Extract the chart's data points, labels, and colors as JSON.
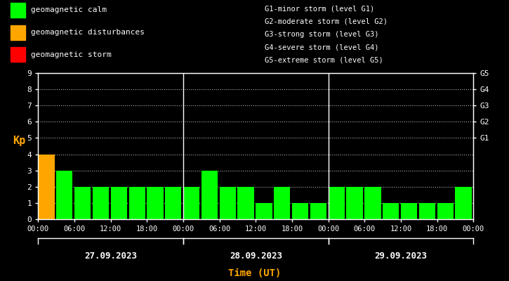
{
  "bg_color": "#000000",
  "bar_data": [
    {
      "day": 0,
      "hour": 0,
      "kp": 4,
      "color": "#FFA500"
    },
    {
      "day": 0,
      "hour": 3,
      "kp": 3,
      "color": "#00FF00"
    },
    {
      "day": 0,
      "hour": 6,
      "kp": 2,
      "color": "#00FF00"
    },
    {
      "day": 0,
      "hour": 9,
      "kp": 2,
      "color": "#00FF00"
    },
    {
      "day": 0,
      "hour": 12,
      "kp": 2,
      "color": "#00FF00"
    },
    {
      "day": 0,
      "hour": 15,
      "kp": 2,
      "color": "#00FF00"
    },
    {
      "day": 0,
      "hour": 18,
      "kp": 2,
      "color": "#00FF00"
    },
    {
      "day": 0,
      "hour": 21,
      "kp": 2,
      "color": "#00FF00"
    },
    {
      "day": 1,
      "hour": 0,
      "kp": 2,
      "color": "#00FF00"
    },
    {
      "day": 1,
      "hour": 3,
      "kp": 3,
      "color": "#00FF00"
    },
    {
      "day": 1,
      "hour": 6,
      "kp": 2,
      "color": "#00FF00"
    },
    {
      "day": 1,
      "hour": 9,
      "kp": 2,
      "color": "#00FF00"
    },
    {
      "day": 1,
      "hour": 12,
      "kp": 1,
      "color": "#00FF00"
    },
    {
      "day": 1,
      "hour": 15,
      "kp": 2,
      "color": "#00FF00"
    },
    {
      "day": 1,
      "hour": 18,
      "kp": 1,
      "color": "#00FF00"
    },
    {
      "day": 1,
      "hour": 21,
      "kp": 1,
      "color": "#00FF00"
    },
    {
      "day": 2,
      "hour": 0,
      "kp": 2,
      "color": "#00FF00"
    },
    {
      "day": 2,
      "hour": 3,
      "kp": 2,
      "color": "#00FF00"
    },
    {
      "day": 2,
      "hour": 6,
      "kp": 2,
      "color": "#00FF00"
    },
    {
      "day": 2,
      "hour": 9,
      "kp": 1,
      "color": "#00FF00"
    },
    {
      "day": 2,
      "hour": 12,
      "kp": 1,
      "color": "#00FF00"
    },
    {
      "day": 2,
      "hour": 15,
      "kp": 1,
      "color": "#00FF00"
    },
    {
      "day": 2,
      "hour": 18,
      "kp": 1,
      "color": "#00FF00"
    },
    {
      "day": 2,
      "hour": 21,
      "kp": 2,
      "color": "#00FF00"
    }
  ],
  "day_labels": [
    "27.09.2023",
    "28.09.2023",
    "29.09.2023"
  ],
  "ylim": [
    0,
    9
  ],
  "yticks": [
    0,
    1,
    2,
    3,
    4,
    5,
    6,
    7,
    8,
    9
  ],
  "right_ticks": [
    5,
    6,
    7,
    8,
    9
  ],
  "right_tick_labels": [
    "G1",
    "G2",
    "G3",
    "G4",
    "G5"
  ],
  "axis_color": "#FFFFFF",
  "text_color": "#FFFFFF",
  "kp_label_color": "#FFA500",
  "time_label_color": "#FFA500",
  "xlabel": "Time (UT)",
  "ylabel": "Kp",
  "legend_items": [
    {
      "label": "geomagnetic calm",
      "color": "#00FF00"
    },
    {
      "label": "geomagnetic disturbances",
      "color": "#FFA500"
    },
    {
      "label": "geomagnetic storm",
      "color": "#FF0000"
    }
  ],
  "storm_legend": [
    "G1-minor storm (level G1)",
    "G2-moderate storm (level G2)",
    "G3-strong storm (level G3)",
    "G4-severe storm (level G4)",
    "G5-extreme storm (level G5)"
  ],
  "hour_ticks": [
    0,
    6,
    12,
    18
  ],
  "hour_tick_labels": [
    "00:00",
    "06:00",
    "12:00",
    "18:00"
  ],
  "bar_width": 2.7
}
